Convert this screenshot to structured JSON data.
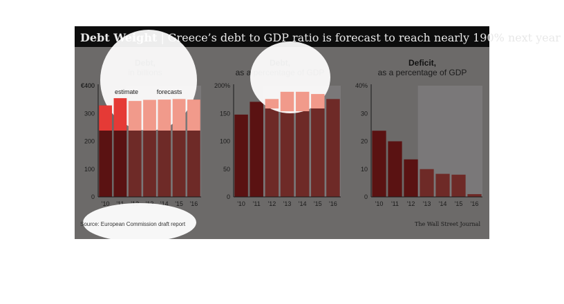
{
  "header": {
    "title_bold": "Debt Weight",
    "separator": "|",
    "title_rest": "Greece’s debt to GDP ratio is forecast to reach nearly 190% next year"
  },
  "source": "Source: European Commission draft report",
  "credit": "The Wall Street Journal",
  "colors": {
    "frame": "#6c6a69",
    "header_bg": "#0d0d0d",
    "actual_bar": "#5a1212",
    "forecast_bar": "#6e2a27",
    "highlight_actual": "#e53a36",
    "highlight_forecast": "#f19a8b",
    "shade": "#7a7879"
  },
  "chart_data": [
    {
      "type": "bar",
      "title": "Debt,",
      "subtitle": "in billions",
      "categories": [
        "'10",
        "'11",
        "'12",
        "'13",
        "'14",
        "'15",
        "'16"
      ],
      "values": [
        329,
        355,
        345,
        349,
        350,
        352,
        350
      ],
      "ylim": [
        0,
        400
      ],
      "yticks": [
        0,
        100,
        200,
        300,
        400
      ],
      "ytick_labels": [
        "0",
        "100",
        "200",
        "300",
        "€400"
      ],
      "annotations": [
        "estimate",
        "forecasts"
      ],
      "shaded_from_index": 2,
      "grid": false
    },
    {
      "type": "bar",
      "title": "Debt,",
      "subtitle": "as a percentage of GDP",
      "categories": [
        "'10",
        "'11",
        "'12",
        "'13",
        "'14",
        "'15",
        "'16"
      ],
      "values": [
        148,
        171,
        176,
        189,
        189,
        185,
        176
      ],
      "ylim": [
        0,
        200
      ],
      "yticks": [
        0,
        50,
        100,
        150,
        200
      ],
      "ytick_labels": [
        "0",
        "50",
        "100",
        "150",
        "200%"
      ],
      "shaded_from_index": 2,
      "grid": false
    },
    {
      "type": "bar",
      "title": "Deficit,",
      "subtitle": "as a percentage of GDP",
      "categories": [
        "'10",
        "'11",
        "'12",
        "'13",
        "'14",
        "'15",
        "'16"
      ],
      "values": [
        23.8,
        20.0,
        13.5,
        10.0,
        8.3,
        8.0,
        1.0
      ],
      "ylim": [
        0,
        40
      ],
      "yticks": [
        0,
        10,
        20,
        30,
        40
      ],
      "ytick_labels": [
        "0",
        "10",
        "20",
        "30",
        "40%"
      ],
      "shaded_from_index": 3,
      "grid": false
    }
  ]
}
